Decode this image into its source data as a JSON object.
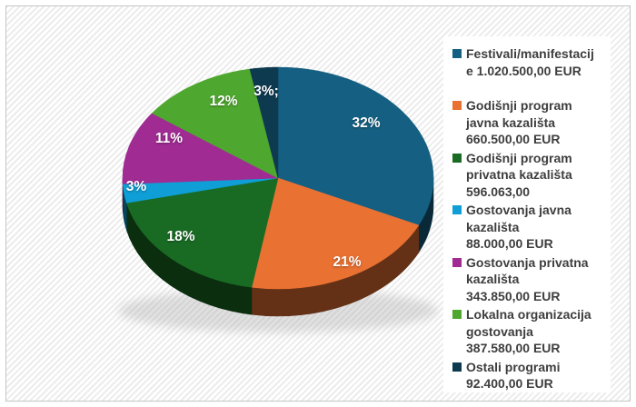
{
  "chart_data": {
    "type": "pie",
    "style": "3d",
    "title": "",
    "legend_position": "right",
    "start_angle_deg": 0,
    "clockwise": true,
    "categories": [
      "Festivali/manifestacije",
      "Godišnji program javna kazališta",
      "Godišnji program privatna kazališta",
      "Gostovanja javna kazališta",
      "Gostovanja privatna kazališta",
      "Lokalna organizacija gostovanja",
      "Ostali programi"
    ],
    "values": [
      1020500.0,
      660500.0,
      596063.0,
      88000.0,
      343850.0,
      387580.0,
      92400.0
    ],
    "value_labels": [
      "1.020.500,00 EUR",
      "660.500,00 EUR",
      "596.063,00",
      "88.000,00 EUR",
      "343.850,00 EUR",
      "387.580,00 EUR",
      "92.400,00 EUR"
    ],
    "percentages": [
      32,
      21,
      18,
      3,
      11,
      12,
      3
    ],
    "slice_labels": [
      "32%",
      "21%",
      "18%",
      "3%",
      "11%",
      "12%",
      "3%;"
    ],
    "colors": [
      "#156082",
      "#E97132",
      "#196B24",
      "#0F9ED5",
      "#A02B93",
      "#4EA72E",
      "#0E3A50"
    ]
  },
  "legend": {
    "items": [
      {
        "color": "#156082",
        "lines": [
          "Festivali/manifestacij",
          "e 1.020.500,00 EUR"
        ]
      },
      {
        "color": "#E97132",
        "lines": [
          "Godišnji program",
          "javna kazališta",
          "660.500,00 EUR"
        ]
      },
      {
        "color": "#196B24",
        "lines": [
          "Godišnji program",
          "privatna kazališta",
          "596.063,00"
        ]
      },
      {
        "color": "#0F9ED5",
        "lines": [
          "Gostovanja javna",
          "kazališta",
          "88.000,00 EUR"
        ]
      },
      {
        "color": "#A02B93",
        "lines": [
          "Gostovanja privatna",
          "kazališta",
          "343.850,00 EUR"
        ]
      },
      {
        "color": "#4EA72E",
        "lines": [
          "Lokalna organizacija",
          "gostovanja",
          "387.580,00 EUR"
        ]
      },
      {
        "color": "#0E3A50",
        "lines": [
          "Ostali programi",
          "92.400,00 EUR"
        ]
      }
    ]
  }
}
